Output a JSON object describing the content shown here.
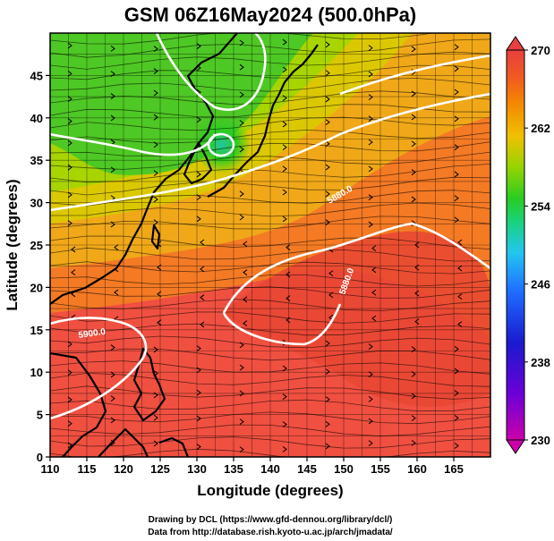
{
  "title": "GSM 06Z16May2024 (500.0hPa)",
  "xaxis": {
    "label": "Longitude (degrees)",
    "ticks": [
      "110",
      "115",
      "120",
      "125",
      "130",
      "135",
      "140",
      "145",
      "150",
      "155",
      "160",
      "165"
    ],
    "range": [
      110,
      170
    ]
  },
  "yaxis": {
    "label": "Latitude  (degrees)",
    "ticks": [
      "0",
      "5",
      "10",
      "15",
      "20",
      "25",
      "30",
      "35",
      "40",
      "45"
    ],
    "range": [
      0,
      50
    ]
  },
  "colorbar": {
    "ticks": [
      "230",
      "238",
      "246",
      "254",
      "262",
      "270"
    ],
    "range": [
      230,
      270
    ],
    "colors": [
      "#cc00aa",
      "#6a00d8",
      "#1a1ad0",
      "#1f6cff",
      "#22c6f0",
      "#19d27c",
      "#2acc22",
      "#96d400",
      "#f0c000",
      "#f48a00",
      "#f05a20",
      "#e84040"
    ]
  },
  "contour_labels": [
    "5900.0",
    "5880.0",
    "5880.0"
  ],
  "credits": {
    "line1": "Drawing by DCL (https://www.gfd-dennou.org/library/dcl/)",
    "line2": "Data from http://database.rish.kyoto-u.ac.jp/arch/jmadata/"
  },
  "colors": {
    "warm": "#f05a3c",
    "orange": "#f08a20",
    "yellow": "#d8c400",
    "green": "#3ec82a",
    "cyan": "#22c6f0",
    "contour": "#ffffff",
    "coast": "#000000"
  }
}
